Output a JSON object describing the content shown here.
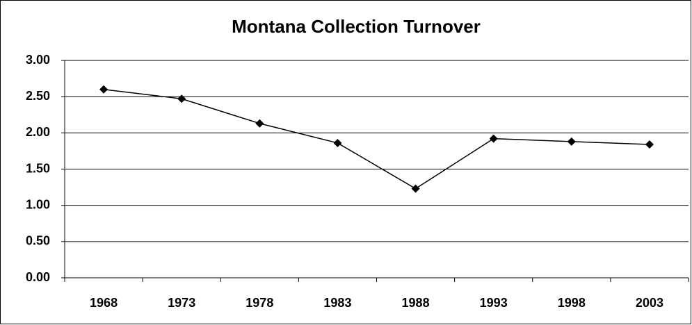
{
  "chart_data": {
    "type": "line",
    "title": "Montana Collection Turnover",
    "categories": [
      "1968",
      "1973",
      "1978",
      "1983",
      "1988",
      "1993",
      "1998",
      "2003"
    ],
    "series": [
      {
        "name": "Turnover",
        "color": "#000000",
        "values": [
          2.6,
          2.47,
          2.13,
          1.86,
          1.23,
          1.92,
          1.88,
          1.84
        ]
      }
    ],
    "ylim": [
      0,
      3
    ],
    "yticks": [
      {
        "value": 0,
        "label": "0.00"
      },
      {
        "value": 0.5,
        "label": "0.50"
      },
      {
        "value": 1,
        "label": "1.00"
      },
      {
        "value": 1.5,
        "label": "1.50"
      },
      {
        "value": 2,
        "label": "2.00"
      },
      {
        "value": 2.5,
        "label": "2.50"
      },
      {
        "value": 3,
        "label": "3.00"
      }
    ],
    "grid": true
  }
}
